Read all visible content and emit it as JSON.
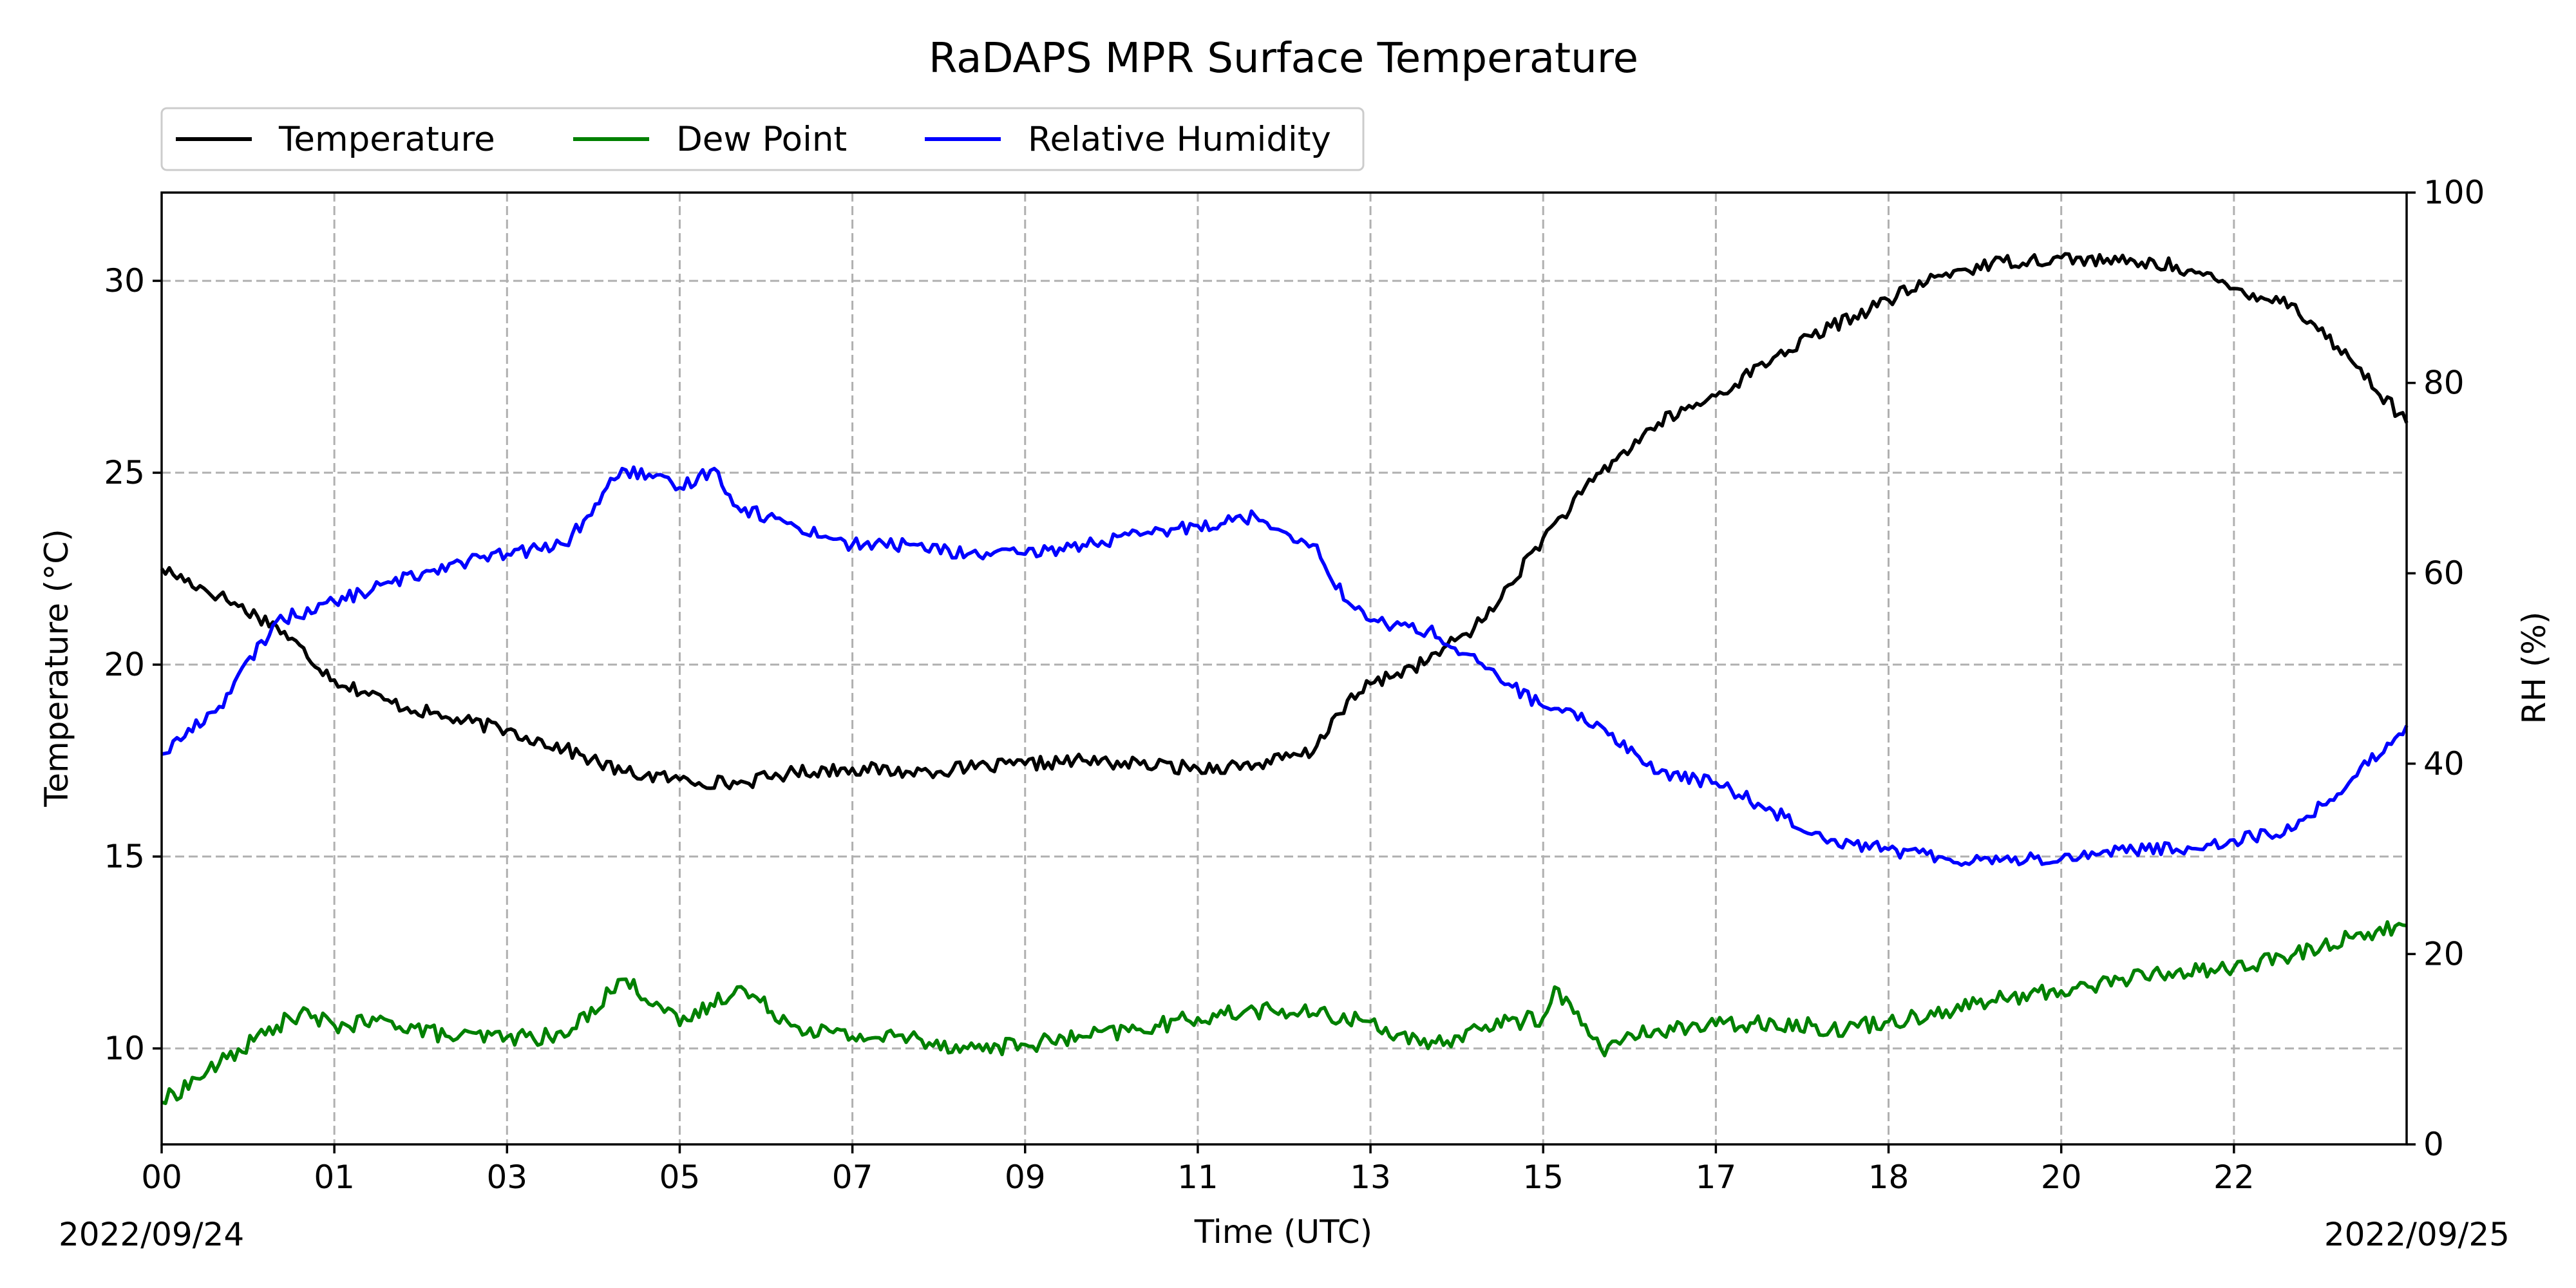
{
  "chart_data": {
    "type": "line",
    "title": "RaDAPS MPR Surface Temperature",
    "xlabel": "Time (UTC)",
    "ylabel_left": "Temperature ($^\\circ$C)",
    "ylabel_left_display": "Temperature (°C)",
    "ylabel_right": "RH (%)",
    "date_start": "2022/09/24",
    "date_end": "2022/09/25",
    "x_tick_labels": [
      "00",
      "01",
      "03",
      "05",
      "07",
      "09",
      "11",
      "13",
      "15",
      "17",
      "18",
      "20",
      "22"
    ],
    "x_tick_hours": [
      0,
      1.5,
      3,
      4.5,
      6,
      7.5,
      9,
      10.5,
      12,
      13.5,
      15,
      16.5,
      18
    ],
    "xlim_hours": [
      0,
      19.5
    ],
    "ylim_left": [
      7.5,
      32.3
    ],
    "yticks_left": [
      10,
      15,
      20,
      25,
      30
    ],
    "ylim_right": [
      0,
      100
    ],
    "yticks_right": [
      0,
      20,
      40,
      60,
      80,
      100
    ],
    "grid": true,
    "legend_position": "above plot, left",
    "series": [
      {
        "name": "Temperature",
        "color": "#000000",
        "axis": "left",
        "x": [
          0,
          0.5,
          1,
          1.5,
          2,
          2.5,
          3,
          3.5,
          4,
          4.5,
          5,
          5.5,
          6,
          6.5,
          7,
          7.5,
          8,
          8.5,
          9,
          9.5,
          10,
          10.2,
          10.5,
          11,
          11.5,
          12,
          12.5,
          13,
          13.5,
          14,
          14.5,
          15,
          15.5,
          16,
          16.5,
          17,
          17.5,
          18,
          18.5,
          19,
          19.5
        ],
        "y": [
          22.5,
          21.8,
          21.0,
          19.6,
          19.0,
          18.6,
          18.3,
          17.8,
          17.2,
          17.0,
          16.9,
          17.2,
          17.3,
          17.2,
          17.3,
          17.4,
          17.5,
          17.4,
          17.3,
          17.4,
          17.7,
          18.7,
          19.5,
          20.1,
          21.2,
          23.3,
          25.0,
          26.3,
          27.0,
          28.0,
          28.8,
          29.5,
          30.2,
          30.5,
          30.6,
          30.5,
          30.4,
          29.8,
          29.4,
          28.0,
          26.3
        ]
      },
      {
        "name": "Dew Point",
        "color": "#008000",
        "axis": "left",
        "x": [
          0,
          0.5,
          1,
          1.2,
          1.5,
          2,
          2.5,
          3,
          3.5,
          4,
          4.3,
          4.5,
          5,
          5.5,
          6,
          6.5,
          7,
          7.5,
          8,
          8.5,
          9,
          9.5,
          10,
          10.5,
          11,
          11.5,
          12,
          12.1,
          12.5,
          13,
          13.5,
          14,
          14.5,
          15,
          15.5,
          16,
          16.5,
          17,
          17.5,
          18,
          18.5,
          19,
          19.5
        ],
        "y": [
          8.6,
          9.6,
          10.6,
          10.9,
          10.6,
          10.7,
          10.3,
          10.3,
          10.3,
          11.8,
          11.2,
          10.6,
          11.6,
          10.6,
          10.3,
          10.3,
          10.0,
          10.1,
          10.3,
          10.5,
          10.8,
          11.0,
          10.9,
          10.7,
          10.0,
          10.6,
          10.8,
          11.6,
          10.0,
          10.5,
          10.6,
          10.7,
          10.5,
          10.7,
          11.0,
          11.3,
          11.5,
          11.8,
          12.0,
          12.1,
          12.4,
          12.9,
          13.2
        ]
      },
      {
        "name": "Relative Humidity",
        "color": "#0000ff",
        "axis": "right",
        "x": [
          0,
          0.5,
          1,
          1.5,
          2,
          2.5,
          3,
          3.5,
          3.7,
          4,
          4.5,
          4.8,
          5,
          5.5,
          6,
          6.5,
          7,
          7.5,
          8,
          8.5,
          9,
          9.5,
          10,
          10.3,
          10.5,
          11,
          11.5,
          12,
          12.5,
          13,
          13.5,
          14,
          14.5,
          15,
          15.5,
          16,
          16.5,
          17,
          17.5,
          18,
          18.5,
          19,
          19.5
        ],
        "y": [
          41,
          46,
          55,
          57,
          59,
          61,
          62,
          63,
          66,
          71,
          69,
          71,
          67,
          65,
          63,
          63,
          62,
          62,
          63,
          64,
          65,
          66,
          63,
          57,
          55,
          54,
          50,
          46,
          44,
          39,
          38,
          35,
          32,
          31,
          30,
          30,
          30,
          31,
          31,
          32,
          33,
          38,
          44
        ]
      }
    ]
  }
}
